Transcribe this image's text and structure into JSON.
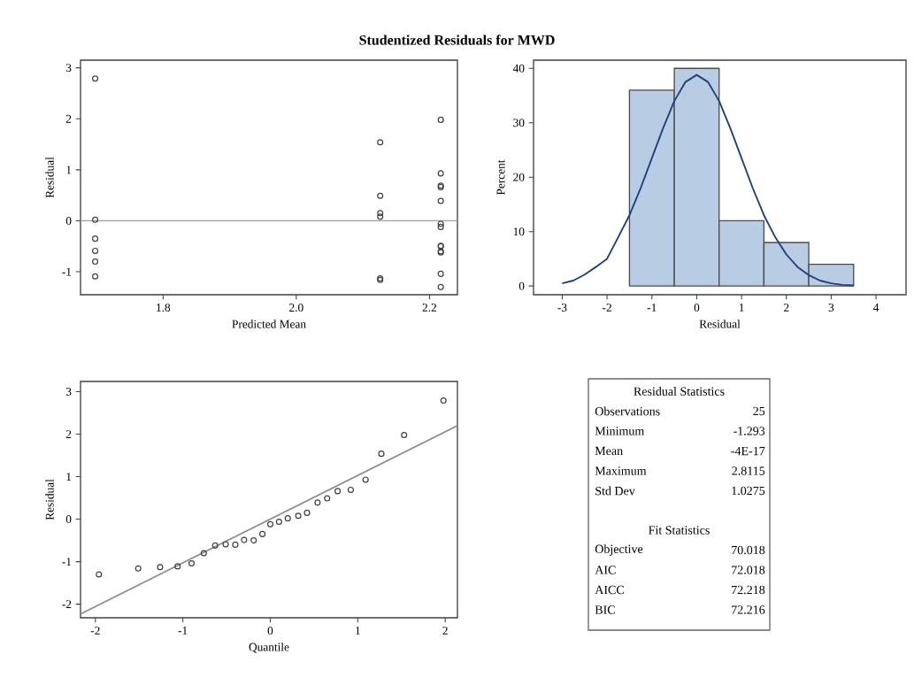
{
  "chart_data": [
    {
      "type": "scatter",
      "title": "Studentized Residuals for MWD",
      "xlabel": "Predicted Mean",
      "ylabel": "Residual",
      "color": "#404040",
      "marker": "circle",
      "x": [
        1.698,
        1.698,
        1.698,
        1.698,
        1.698,
        1.698,
        2.126,
        2.126,
        2.126,
        2.126,
        2.126,
        2.126,
        2.217,
        2.217,
        2.217,
        2.217,
        2.217,
        2.217,
        2.217,
        2.217,
        2.217,
        2.217,
        2.217,
        2.217,
        2.217
      ],
      "values": [
        2.79,
        0.02,
        -0.35,
        -0.59,
        -0.8,
        -1.09,
        1.54,
        0.49,
        0.15,
        0.08,
        -1.13,
        -1.16,
        1.98,
        0.93,
        0.69,
        0.66,
        0.39,
        -0.06,
        -0.12,
        -0.49,
        -0.5,
        -0.6,
        -0.62,
        -1.04,
        -1.3
      ],
      "xlim": [
        1.676,
        2.242
      ],
      "ylim": [
        -1.45,
        3.15
      ],
      "xticks": [
        1.8,
        {
          "value": 2.0,
          "label": "2.0"
        },
        2.2
      ],
      "yticks": [
        -1,
        0,
        1,
        2,
        3
      ],
      "ref_lines": [
        {
          "axis": "y",
          "value": 0,
          "color": "#a0a0a0"
        }
      ]
    },
    {
      "type": "histogram",
      "xlabel": "Residual",
      "ylabel": "Percent",
      "color": "#b8cce4",
      "bins": [
        -1.5,
        -0.5,
        0.5,
        1.5,
        2.5,
        3.5
      ],
      "values": [
        36,
        40,
        12,
        8,
        4
      ],
      "xlim": [
        -3.64,
        4.67
      ],
      "ylim": [
        -1.6,
        41.5
      ],
      "xticks": [
        -3,
        -2,
        -1,
        0,
        1,
        2,
        3,
        4
      ],
      "yticks": [
        0,
        10,
        20,
        30,
        40
      ],
      "series": [
        {
          "type": "line",
          "color": "#1f3f7a",
          "x": [
            -3,
            -2.75,
            -2.5,
            -2.25,
            -2,
            -1.75,
            -1.5,
            -1.25,
            -1,
            -0.75,
            -0.5,
            -0.25,
            0,
            0.25,
            0.5,
            0.75,
            1,
            1.25,
            1.5,
            1.75,
            2,
            2.25,
            2.5,
            2.75,
            3,
            3.25,
            3.5
          ],
          "values": [
            0.5,
            1.0,
            2.1,
            3.5,
            5.0,
            9.0,
            13.0,
            18.0,
            23.5,
            29.0,
            34.0,
            37.5,
            38.8,
            37.5,
            34.0,
            29.0,
            23.5,
            18.0,
            13.0,
            9.0,
            5.8,
            3.5,
            2.0,
            1.0,
            0.5,
            0.2,
            0.1
          ]
        }
      ]
    },
    {
      "type": "scatter",
      "xlabel": "Quantile",
      "ylabel": "Residual",
      "xlim": [
        -2.17,
        2.14
      ],
      "ylim": [
        -2.32,
        3.24
      ],
      "xticks": [
        -2,
        -1,
        0,
        1,
        2
      ],
      "yticks": [
        -2,
        -1,
        0,
        1,
        2,
        3
      ],
      "series": [
        {
          "type": "scatter",
          "color": "#404040",
          "marker": "circle",
          "x": [
            -1.96,
            -1.51,
            -1.26,
            -1.06,
            -0.9,
            -0.76,
            -0.63,
            -0.51,
            -0.4,
            -0.3,
            -0.19,
            -0.09,
            0.0,
            0.1,
            0.2,
            0.32,
            0.42,
            0.54,
            0.65,
            0.77,
            0.92,
            1.09,
            1.27,
            1.53,
            1.98
          ],
          "values": [
            -1.3,
            -1.16,
            -1.13,
            -1.11,
            -1.04,
            -0.8,
            -0.62,
            -0.59,
            -0.6,
            -0.49,
            -0.5,
            -0.35,
            -0.12,
            -0.06,
            0.02,
            0.08,
            0.15,
            0.39,
            0.49,
            0.66,
            0.69,
            0.93,
            1.54,
            1.98,
            2.79
          ]
        },
        {
          "type": "line",
          "color": "#909090",
          "x": [
            -2.17,
            2.14
          ],
          "values": [
            -2.23,
            2.2
          ]
        }
      ]
    },
    {
      "type": "other",
      "annotations": [
        "Residual Statistics",
        "Observations",
        "25",
        "Minimum",
        "-1.293",
        "Mean",
        "-4E-17",
        "Maximum",
        "2.8115",
        "Std Dev",
        "1.0275",
        "Fit Statistics",
        "Objective",
        "70.018",
        "AIC",
        "72.018",
        "AICC",
        "72.218",
        "BIC",
        "72.216"
      ]
    }
  ]
}
